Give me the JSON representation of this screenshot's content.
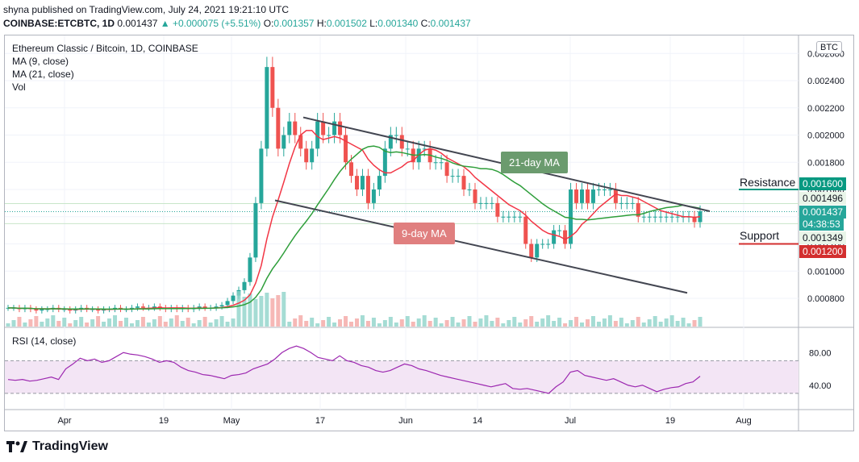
{
  "header": {
    "publish_line": "shyna published on TradingView.com, July 24, 2021 19:21:10 UTC",
    "symbol": "COINBASE:ETCBTC, 1D",
    "last": "0.001437",
    "change": "▲ +0.000075 (+5.51%)",
    "o_label": "O:",
    "o": "0.001357",
    "h_label": "H:",
    "h": "0.001502",
    "l_label": "L:",
    "l": "0.001340",
    "c_label": "C:",
    "c": "0.001437"
  },
  "legend": {
    "title": "Ethereum Classic / Bitcoin, 1D, COINBASE",
    "ma9": "MA (9, close)",
    "ma21": "MA (21, close)",
    "vol": "Vol",
    "rsi": "RSI (14, close)"
  },
  "currency_button": "BTC",
  "annotations": {
    "resistance": "Resistance",
    "support": "Support",
    "ma21_label": "21-day MA",
    "ma9_label": "9-day MA"
  },
  "price_tags": {
    "resistance": "0.001600",
    "line_1496": "0.001496",
    "current": "0.001437",
    "countdown": "04:38:53",
    "line_1349": "0.001349",
    "support": "0.001200"
  },
  "footer": {
    "brand": "TradingView"
  },
  "colors": {
    "up": "#26a69a",
    "down": "#ef5350",
    "ma9": "#f23645",
    "ma21": "#2e9e3a",
    "resistance": "#089981",
    "support": "#d32f2f",
    "rsi": "#9c27b0",
    "channel": "#434651",
    "ma21_box": "#6b9b6e",
    "ma9_box": "#e07f7f"
  },
  "chart_data": {
    "type": "candlestick",
    "title": "Ethereum Classic / Bitcoin, 1D, COINBASE",
    "y_ticks": [
      0.0008,
      0.001,
      0.0012,
      0.0014,
      0.0016,
      0.0018,
      0.002,
      0.0022,
      0.0024,
      0.0026
    ],
    "y_tick_labels": [
      "0.000800",
      "0.001000",
      "0.001200",
      "0.001400",
      "0.001600",
      "0.001800",
      "0.002000",
      "0.002200",
      "0.002400",
      "0.002600"
    ],
    "x_tick_labels": [
      "Apr",
      "19",
      "May",
      "17",
      "Jun",
      "14",
      "Jul",
      "19",
      "Aug"
    ],
    "rsi_ticks": [
      80,
      40
    ],
    "rsi_tick_labels": [
      "80.00",
      "40.00"
    ],
    "rsi_band": [
      70,
      30
    ],
    "resistance_level": 0.0016,
    "support_level": 0.0012,
    "channel_upper": [
      [
        0.00213,
        0.00144
      ]
    ],
    "channel_lower": [
      [
        0.00152,
        0.00084
      ]
    ],
    "closes": [
      0.00073,
      0.00073,
      0.00072,
      0.00073,
      0.00072,
      0.00071,
      0.00072,
      0.00072,
      0.00073,
      0.00072,
      0.00072,
      0.00071,
      0.00072,
      0.00073,
      0.00072,
      0.00072,
      0.00071,
      0.00072,
      0.00072,
      0.00073,
      0.00072,
      0.00072,
      0.00073,
      0.00074,
      0.00073,
      0.00073,
      0.00074,
      0.00073,
      0.00072,
      0.00073,
      0.00072,
      0.00073,
      0.00072,
      0.00073,
      0.00074,
      0.00073,
      0.00073,
      0.00074,
      0.00075,
      0.00078,
      0.00082,
      0.00086,
      0.00092,
      0.0011,
      0.0015,
      0.0019,
      0.0025,
      0.0022,
      0.0019,
      0.002,
      0.0021,
      0.002,
      0.0019,
      0.0018,
      0.0019,
      0.0021,
      0.002,
      0.002,
      0.0021,
      0.002,
      0.0018,
      0.0017,
      0.0016,
      0.0017,
      0.0015,
      0.0016,
      0.0017,
      0.0019,
      0.002,
      0.002,
      0.0019,
      0.0019,
      0.0018,
      0.0019,
      0.0019,
      0.0018,
      0.0018,
      0.0018,
      0.0017,
      0.0017,
      0.0017,
      0.0016,
      0.0016,
      0.0015,
      0.0015,
      0.0015,
      0.0015,
      0.0014,
      0.0014,
      0.0014,
      0.0014,
      0.0014,
      0.0012,
      0.0011,
      0.0012,
      0.0012,
      0.0012,
      0.0013,
      0.0013,
      0.0012,
      0.0016,
      0.0015,
      0.0016,
      0.0015,
      0.0016,
      0.0016,
      0.0016,
      0.0016,
      0.0015,
      0.0015,
      0.0015,
      0.0015,
      0.0014,
      0.0014,
      0.0014,
      0.0014,
      0.0014,
      0.0014,
      0.0014,
      0.0014,
      0.0014,
      0.0014,
      0.00136,
      0.00144
    ],
    "rsi": [
      47,
      46,
      47,
      45,
      46,
      48,
      50,
      47,
      60,
      66,
      73,
      70,
      72,
      68,
      70,
      75,
      80,
      78,
      77,
      75,
      72,
      68,
      70,
      68,
      62,
      58,
      56,
      53,
      52,
      50,
      48,
      52,
      53,
      55,
      60,
      63,
      66,
      72,
      80,
      85,
      88,
      85,
      80,
      74,
      72,
      70,
      76,
      70,
      68,
      64,
      62,
      58,
      56,
      58,
      62,
      66,
      64,
      60,
      58,
      55,
      52,
      50,
      48,
      46,
      44,
      42,
      40,
      38,
      40,
      42,
      36,
      35,
      36,
      34,
      32,
      30,
      38,
      44,
      56,
      58,
      52,
      50,
      48,
      46,
      48,
      44,
      40,
      38,
      40,
      36,
      32,
      35,
      37,
      38,
      42,
      44,
      51
    ]
  }
}
